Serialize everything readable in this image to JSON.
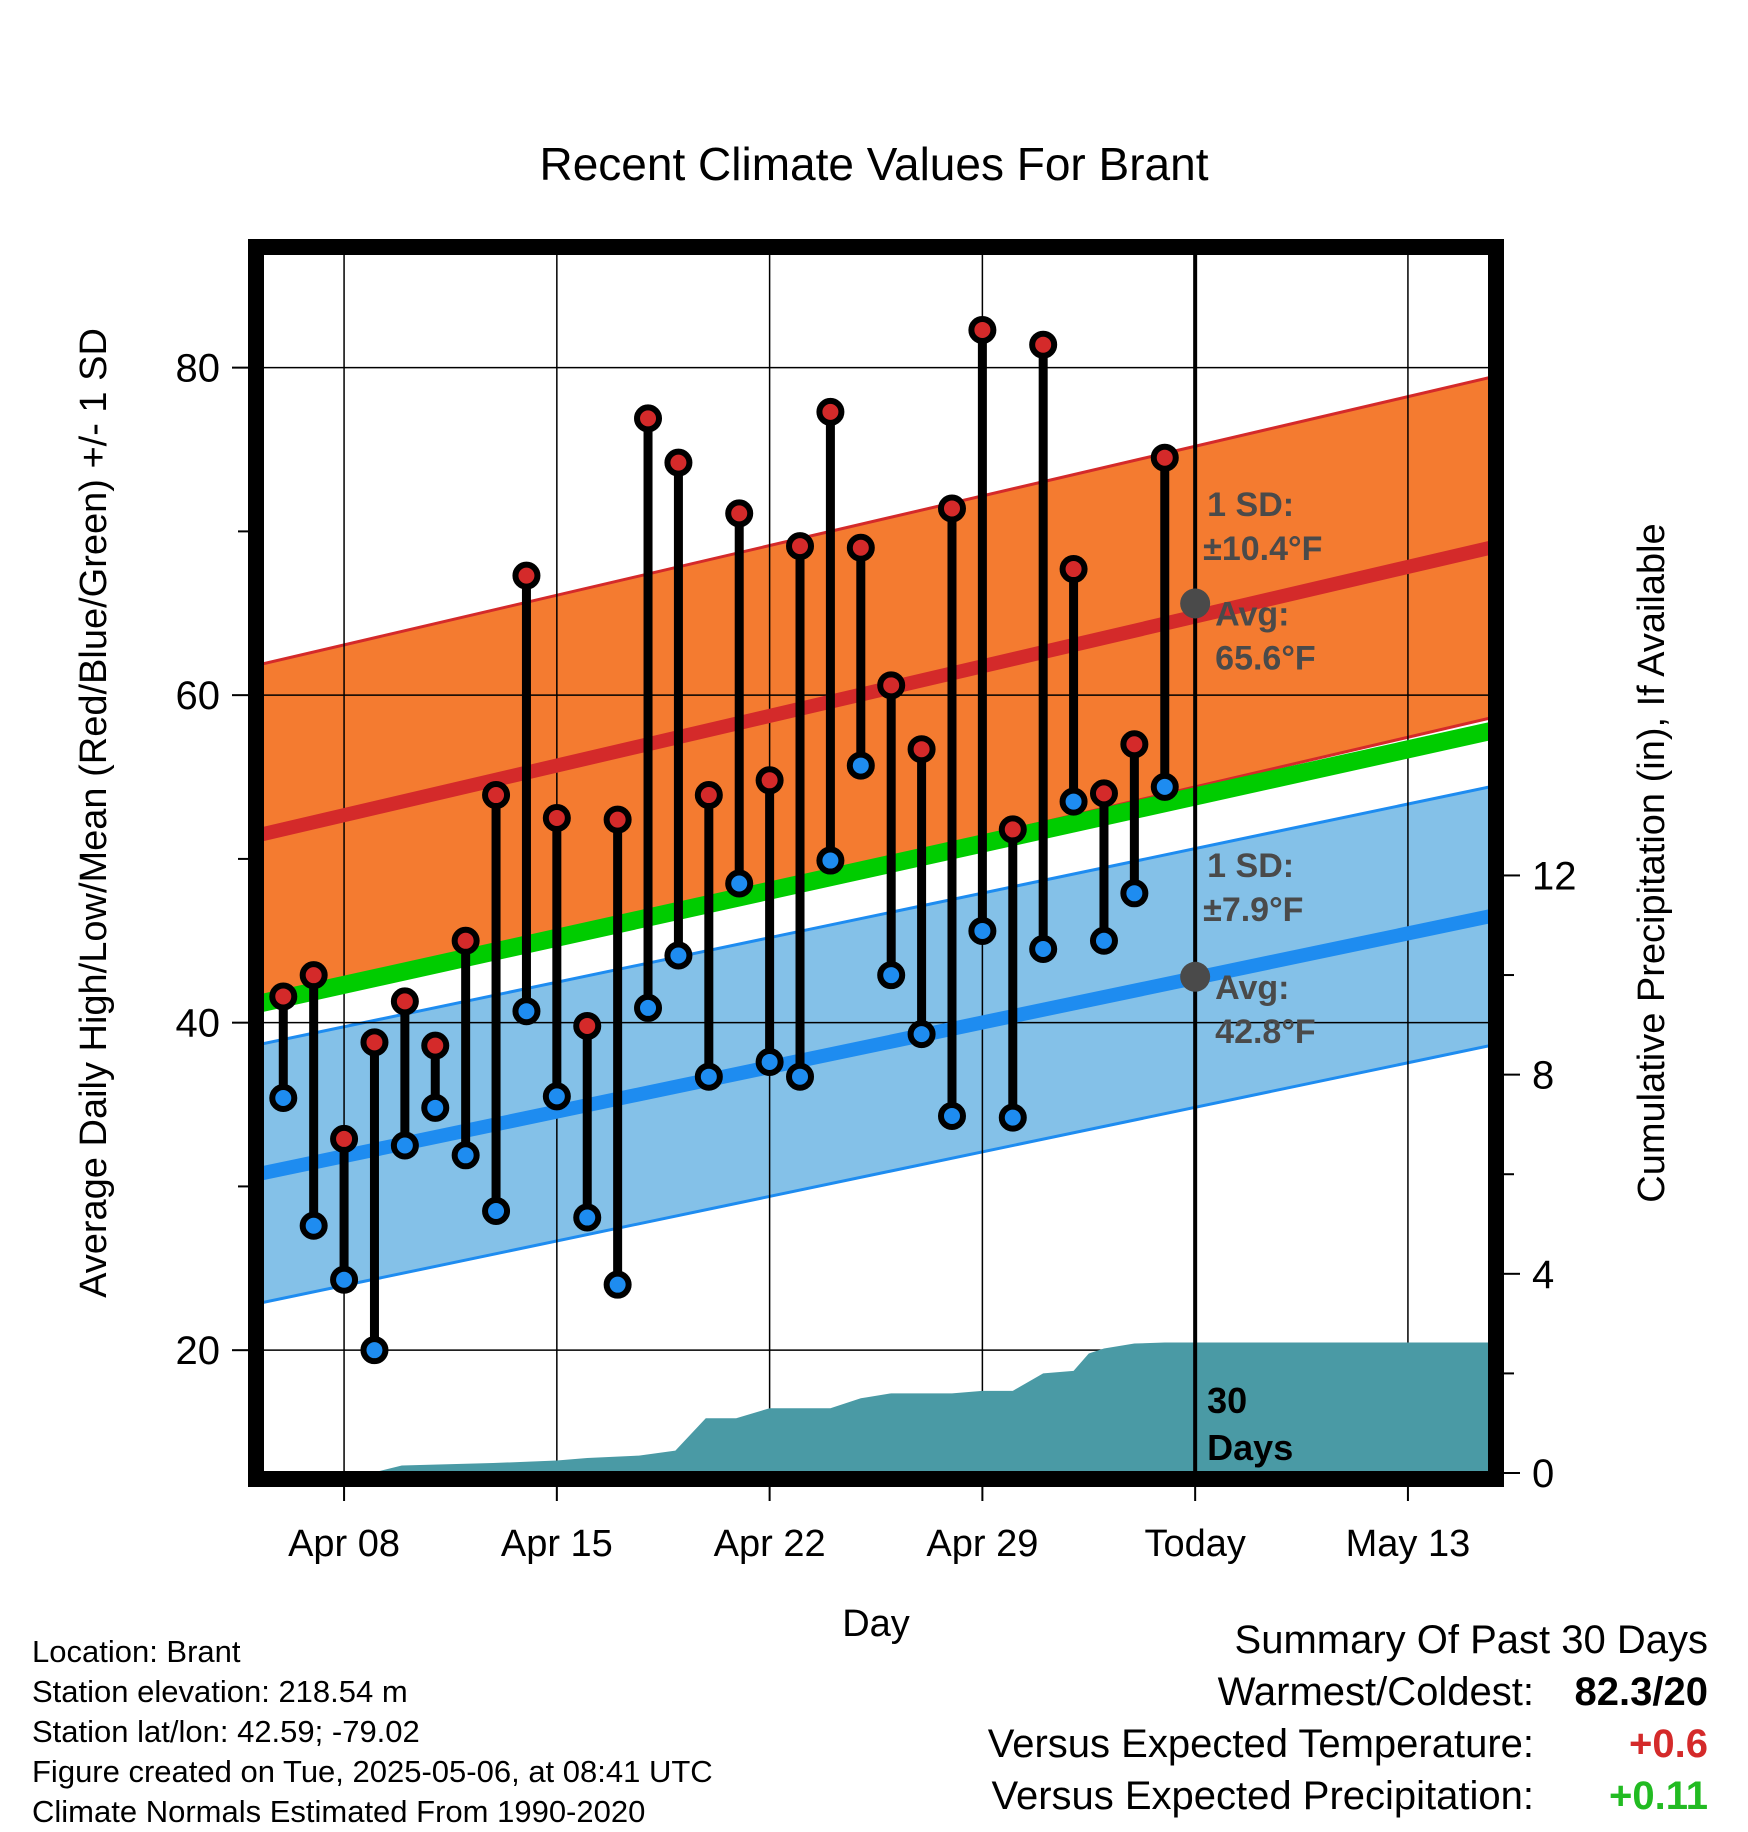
{
  "chart_data": {
    "type": "line",
    "title": "Recent Climate Values For Brant",
    "xlabel": "Day",
    "ylabel": "Average Daily High/Low/Mean (Red/Blue/Green) +/- 1 SD",
    "y2label": "Cumulative Precipitation (in), If Available",
    "x_tick_labels": [
      "Apr 08",
      "Apr 15",
      "Apr 22",
      "Apr 29",
      "Today",
      "May 13"
    ],
    "x_tick_days": [
      0,
      7,
      14,
      21,
      28,
      35
    ],
    "xlim_days": [
      -2.7,
      37.7
    ],
    "ylim": [
      12.5,
      87
    ],
    "y_ticks": [
      20,
      40,
      60,
      80
    ],
    "y2lim": [
      0,
      24.5
    ],
    "y2_ticks": [
      0,
      4,
      8,
      12
    ],
    "grid": true,
    "today_day": 28,
    "days_label": [
      "30",
      "Days"
    ],
    "high_normal": {
      "color": "#d42a2a",
      "band_color": "#f47b30",
      "start": [
        -2.7,
        51.5
      ],
      "end": [
        37.7,
        69.0
      ],
      "sd": 10.4,
      "sd_label": [
        "1 SD:",
        "±10.4°F"
      ],
      "avg_label": [
        "Avg:",
        "65.6°F"
      ],
      "avg_value": 65.6
    },
    "low_normal": {
      "color": "#1e8cf0",
      "band_color": "#84c1e8",
      "start": [
        -2.7,
        30.8
      ],
      "end": [
        37.7,
        46.5
      ],
      "sd": 7.9,
      "sd_label": [
        "1 SD:",
        "±7.9°F"
      ],
      "avg_label": [
        "Avg:",
        "42.8°F"
      ],
      "avg_value": 42.8
    },
    "mean_normal": {
      "color": "#00cc00",
      "start": [
        -2.7,
        41.2
      ],
      "end": [
        37.7,
        57.8
      ]
    },
    "daily": {
      "days": [
        -2,
        -1,
        0,
        1,
        2,
        3,
        4,
        5,
        6,
        7,
        8,
        9,
        10,
        11,
        12,
        13,
        14,
        15,
        16,
        17,
        18,
        19,
        20,
        21,
        22,
        23,
        24,
        25,
        26,
        27
      ],
      "highs": [
        41.6,
        42.9,
        32.9,
        38.8,
        41.3,
        38.6,
        45.0,
        53.9,
        67.3,
        52.5,
        39.8,
        52.4,
        76.9,
        74.2,
        53.9,
        71.1,
        54.8,
        69.1,
        77.3,
        69.0,
        60.6,
        56.7,
        71.4,
        82.3,
        51.8,
        81.4,
        67.7,
        54.0,
        57.0,
        74.5
      ],
      "lows": [
        35.4,
        27.6,
        24.3,
        20.0,
        32.5,
        34.8,
        31.9,
        28.5,
        40.7,
        35.5,
        28.1,
        24.0,
        40.9,
        44.1,
        36.7,
        48.5,
        37.6,
        36.7,
        49.9,
        55.7,
        42.9,
        39.3,
        34.3,
        45.6,
        34.2,
        44.5,
        53.5,
        45.0,
        47.9,
        54.4
      ]
    },
    "precip": {
      "color": "#4a9aa5",
      "days": [
        -2.7,
        0.9,
        1.9,
        4.9,
        7.0,
        8.0,
        9.7,
        10.9,
        11.9,
        12.9,
        14.0,
        15.0,
        16.0,
        17.0,
        18.0,
        19.0,
        20.0,
        21.0,
        22.0,
        23.0,
        24.0,
        24.5,
        25.0,
        25.5,
        26.0,
        27.0,
        28.0,
        37.7
      ],
      "values": [
        0.0,
        0.0,
        0.15,
        0.2,
        0.25,
        0.3,
        0.35,
        0.45,
        1.1,
        1.1,
        1.3,
        1.3,
        1.3,
        1.5,
        1.6,
        1.6,
        1.6,
        1.65,
        1.65,
        2.0,
        2.05,
        2.4,
        2.5,
        2.55,
        2.6,
        2.62,
        2.62,
        2.62
      ]
    }
  },
  "footer": {
    "location": "Location: Brant",
    "elevation": "Station elevation: 218.54 m",
    "latlon": "Station lat/lon: 42.59; -79.02",
    "created": "Figure created on Tue, 2025-05-06, at 08:41 UTC",
    "normals": "Climate Normals Estimated From 1990-2020"
  },
  "summary": {
    "title": "Summary Of Past 30 Days",
    "warmest_label": "Warmest/Coldest:",
    "warmest_value": "82.3/20",
    "temp_label": "Versus Expected Temperature:",
    "temp_value": "+0.6",
    "temp_color": "#d42a2a",
    "precip_label": "Versus Expected Precipitation:",
    "precip_value": "+0.11",
    "precip_color": "#22bb22"
  }
}
